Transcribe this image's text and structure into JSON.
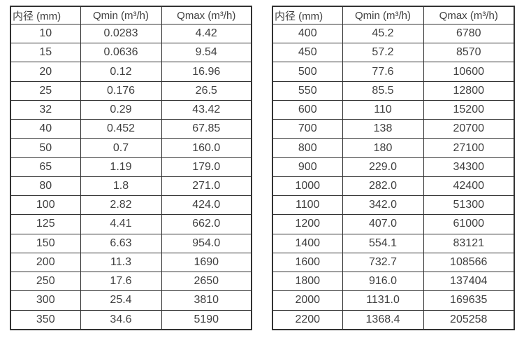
{
  "page": {
    "background": "#ffffff",
    "text_color": "#404040",
    "border_color": "#333333"
  },
  "tables": [
    {
      "name": "flow-rate-table-small-diameters",
      "headers": [
        "内径 (mm)",
        "Qmin (m³/h)",
        "Qmax (m³/h)"
      ],
      "rows": [
        [
          "10",
          "0.0283",
          "4.42"
        ],
        [
          "15",
          "0.0636",
          "9.54"
        ],
        [
          "20",
          "0.12",
          "16.96"
        ],
        [
          "25",
          "0.176",
          "26.5"
        ],
        [
          "32",
          "0.29",
          "43.42"
        ],
        [
          "40",
          "0.452",
          "67.85"
        ],
        [
          "50",
          "0.7",
          "160.0"
        ],
        [
          "65",
          "1.19",
          "179.0"
        ],
        [
          "80",
          "1.8",
          "271.0"
        ],
        [
          "100",
          "2.82",
          "424.0"
        ],
        [
          "125",
          "4.41",
          "662.0"
        ],
        [
          "150",
          "6.63",
          "954.0"
        ],
        [
          "200",
          "11.3",
          "1690"
        ],
        [
          "250",
          "17.6",
          "2650"
        ],
        [
          "300",
          "25.4",
          "3810"
        ],
        [
          "350",
          "34.6",
          "5190"
        ]
      ]
    },
    {
      "name": "flow-rate-table-large-diameters",
      "headers": [
        "内径 (mm)",
        "Qmin (m³/h)",
        "Qmax (m³/h)"
      ],
      "rows": [
        [
          "400",
          "45.2",
          "6780"
        ],
        [
          "450",
          "57.2",
          "8570"
        ],
        [
          "500",
          "77.6",
          "10600"
        ],
        [
          "550",
          "85.5",
          "12800"
        ],
        [
          "600",
          "110",
          "15200"
        ],
        [
          "700",
          "138",
          "20700"
        ],
        [
          "800",
          "180",
          "27100"
        ],
        [
          "900",
          "229.0",
          "34300"
        ],
        [
          "1000",
          "282.0",
          "42400"
        ],
        [
          "1100",
          "342.0",
          "51300"
        ],
        [
          "1200",
          "407.0",
          "61000"
        ],
        [
          "1400",
          "554.1",
          "83121"
        ],
        [
          "1600",
          "732.7",
          "108566"
        ],
        [
          "1800",
          "916.0",
          "137404"
        ],
        [
          "2000",
          "1131.0",
          "169635"
        ],
        [
          "2200",
          "1368.4",
          "205258"
        ]
      ]
    }
  ]
}
